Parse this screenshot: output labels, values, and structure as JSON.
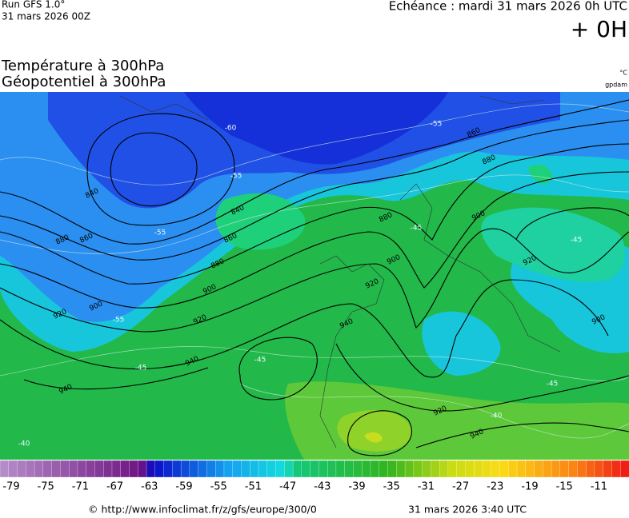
{
  "header": {
    "run": "Run GFS 1.0°",
    "run_date": "31 mars 2026 00Z",
    "echeance": "Echéance : mardi 31 mars 2026 0h UTC",
    "lead": "+ 0H",
    "title_temp": "Température à 300hPa",
    "title_geo": "Géopotentiel à 300hPa",
    "unit_temp": "°C",
    "unit_geo": "gpdam"
  },
  "map": {
    "geopotential_labels": [
      840,
      860,
      880,
      900,
      920,
      940,
      840,
      860,
      880,
      900,
      920,
      940,
      860,
      880,
      900,
      920,
      940,
      920,
      900,
      880,
      920,
      940,
      900
    ],
    "temperature_labels": [
      -60,
      -55,
      -55,
      -55,
      -45,
      -45,
      -40,
      -45,
      -45,
      -45,
      -40,
      -55
    ]
  },
  "colorbar": {
    "labels": [
      -79,
      -75,
      -71,
      -67,
      -63,
      -59,
      -55,
      -51,
      -47,
      -43,
      -39,
      -35,
      -31,
      -27,
      -23,
      -19,
      -15,
      -11
    ]
  },
  "footer": {
    "url": "© http://www.infoclimat.fr/z/gfs/europe/300/0",
    "time": "31 mars 2026  3:40 UTC"
  }
}
